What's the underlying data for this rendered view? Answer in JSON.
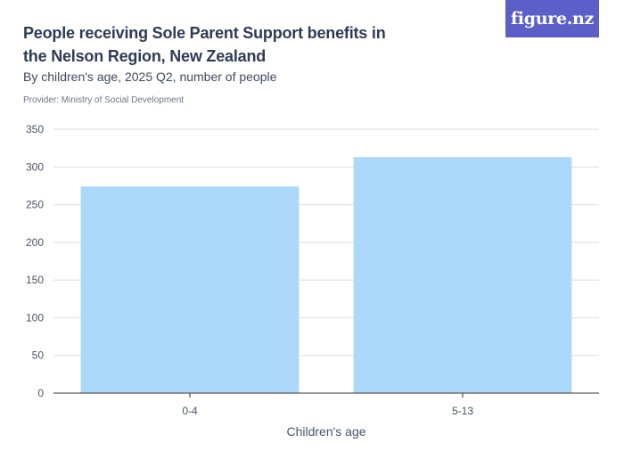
{
  "header": {
    "title": "People receiving Sole Parent Support benefits in the Nelson Region, New Zealand",
    "subtitle": "By children's age, 2025 Q2, number of people",
    "provider": "Provider: Ministry of Social Development",
    "logo_text": "figure.nz"
  },
  "colors": {
    "bar": "#acd8fa",
    "grid": "#dddddd",
    "axis": "#333333",
    "logo_bg": "#5b5fc7"
  },
  "chart_data": {
    "type": "bar",
    "categories": [
      "0-4",
      "5-13"
    ],
    "values": [
      274,
      313
    ],
    "title": "People receiving Sole Parent Support benefits in the Nelson Region, New Zealand",
    "subtitle": "By children's age, 2025 Q2, number of people",
    "xlabel": "Children's age",
    "ylabel": "",
    "ylim": [
      0,
      350
    ],
    "yticks": [
      0,
      50,
      100,
      150,
      200,
      250,
      300,
      350
    ],
    "grid": true,
    "legend": "none"
  }
}
